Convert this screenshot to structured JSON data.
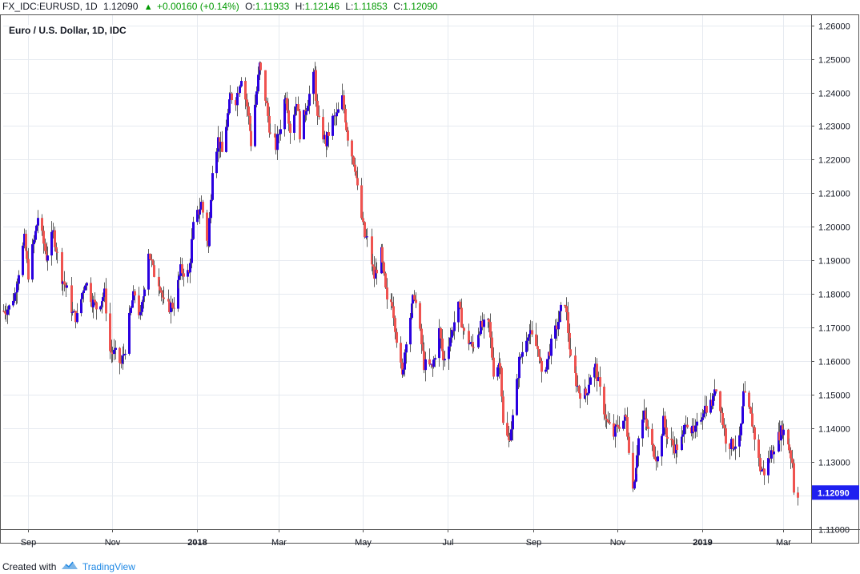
{
  "header": {
    "symbol": "FX_IDC:EURUSD, 1D",
    "last": "1.12090",
    "change": "+0.00160 (+0.14%)",
    "open_label": "O:",
    "open": "1.11933",
    "high_label": "H:",
    "high": "1.12146",
    "low_label": "L:",
    "low": "1.11853",
    "close_label": "C:",
    "close": "1.12090"
  },
  "footer": {
    "created_with": "Created with",
    "brand": "TradingView"
  },
  "colors": {
    "up": "#2a00e0",
    "down": "#ef5350",
    "wick": "#606060",
    "grid": "#e6eaf0",
    "price_tag": "#1e20f0"
  },
  "chart_data": {
    "type": "candlestick",
    "title": "Euro / U.S. Dollar, 1D, IDC",
    "ylim": [
      1.11,
      1.263
    ],
    "y_ticks": [
      1.11,
      1.12,
      1.13,
      1.14,
      1.15,
      1.16,
      1.17,
      1.18,
      1.19,
      1.2,
      1.21,
      1.22,
      1.23,
      1.24,
      1.25,
      1.26
    ],
    "y_tick_labels": [
      "1.11000",
      "1.12000",
      "1.13000",
      "1.14000",
      "1.15000",
      "1.16000",
      "1.17000",
      "1.18000",
      "1.19000",
      "1.20000",
      "1.21000",
      "1.22000",
      "1.23000",
      "1.24000",
      "1.25000",
      "1.26000"
    ],
    "x_labels": [
      {
        "label": "Sep",
        "date": "2017-09-01",
        "bold": false
      },
      {
        "label": "Nov",
        "date": "2017-11-01",
        "bold": false
      },
      {
        "label": "2018",
        "date": "2018-01-01",
        "bold": true
      },
      {
        "label": "Mar",
        "date": "2018-03-01",
        "bold": false
      },
      {
        "label": "May",
        "date": "2018-05-01",
        "bold": false
      },
      {
        "label": "Jul",
        "date": "2018-07-01",
        "bold": false
      },
      {
        "label": "Sep",
        "date": "2018-09-01",
        "bold": false
      },
      {
        "label": "Nov",
        "date": "2018-11-01",
        "bold": false
      },
      {
        "label": "2019",
        "date": "2019-01-01",
        "bold": true
      },
      {
        "label": "Mar",
        "date": "2019-03-01",
        "bold": false
      }
    ],
    "x_range": [
      "2017-08-14",
      "2019-03-21"
    ],
    "last_price_label": "1.12090",
    "last_price": 1.1209,
    "close_path": [
      [
        "2017-08-14",
        1.175
      ],
      [
        "2017-08-18",
        1.176
      ],
      [
        "2017-08-22",
        1.18
      ],
      [
        "2017-08-29",
        1.196
      ],
      [
        "2017-09-01",
        1.186
      ],
      [
        "2017-09-08",
        1.203
      ],
      [
        "2017-09-14",
        1.191
      ],
      [
        "2017-09-19",
        1.198
      ],
      [
        "2017-09-25",
        1.185
      ],
      [
        "2017-09-29",
        1.181
      ],
      [
        "2017-10-03",
        1.174
      ],
      [
        "2017-10-06",
        1.173
      ],
      [
        "2017-10-12",
        1.184
      ],
      [
        "2017-10-17",
        1.178
      ],
      [
        "2017-10-20",
        1.176
      ],
      [
        "2017-10-26",
        1.18
      ],
      [
        "2017-10-30",
        1.163
      ],
      [
        "2017-11-03",
        1.162
      ],
      [
        "2017-11-07",
        1.159
      ],
      [
        "2017-11-10",
        1.164
      ],
      [
        "2017-11-15",
        1.178
      ],
      [
        "2017-11-17",
        1.18
      ],
      [
        "2017-11-21",
        1.173
      ],
      [
        "2017-11-27",
        1.193
      ],
      [
        "2017-11-30",
        1.187
      ],
      [
        "2017-12-05",
        1.183
      ],
      [
        "2017-12-08",
        1.177
      ],
      [
        "2017-12-11",
        1.176
      ],
      [
        "2017-12-15",
        1.177
      ],
      [
        "2017-12-20",
        1.187
      ],
      [
        "2017-12-26",
        1.186
      ],
      [
        "2017-12-29",
        1.2
      ],
      [
        "2018-01-04",
        1.207
      ],
      [
        "2018-01-09",
        1.194
      ],
      [
        "2018-01-12",
        1.218
      ],
      [
        "2018-01-16",
        1.226
      ],
      [
        "2018-01-19",
        1.222
      ],
      [
        "2018-01-25",
        1.239
      ],
      [
        "2018-01-29",
        1.238
      ],
      [
        "2018-02-02",
        1.245
      ],
      [
        "2018-02-06",
        1.236
      ],
      [
        "2018-02-09",
        1.225
      ],
      [
        "2018-02-15",
        1.248
      ],
      [
        "2018-02-20",
        1.236
      ],
      [
        "2018-02-23",
        1.227
      ],
      [
        "2018-02-27",
        1.224
      ],
      [
        "2018-03-01",
        1.228
      ],
      [
        "2018-03-06",
        1.24
      ],
      [
        "2018-03-09",
        1.229
      ],
      [
        "2018-03-14",
        1.238
      ],
      [
        "2018-03-16",
        1.228
      ],
      [
        "2018-03-21",
        1.236
      ],
      [
        "2018-03-27",
        1.246
      ],
      [
        "2018-03-29",
        1.232
      ],
      [
        "2018-04-04",
        1.225
      ],
      [
        "2018-04-09",
        1.232
      ],
      [
        "2018-04-12",
        1.233
      ],
      [
        "2018-04-16",
        1.238
      ],
      [
        "2018-04-20",
        1.227
      ],
      [
        "2018-04-25",
        1.218
      ],
      [
        "2018-04-27",
        1.211
      ],
      [
        "2018-05-02",
        1.197
      ],
      [
        "2018-05-04",
        1.196
      ],
      [
        "2018-05-09",
        1.185
      ],
      [
        "2018-05-14",
        1.192
      ],
      [
        "2018-05-18",
        1.177
      ],
      [
        "2018-05-22",
        1.178
      ],
      [
        "2018-05-25",
        1.167
      ],
      [
        "2018-05-29",
        1.155
      ],
      [
        "2018-06-01",
        1.167
      ],
      [
        "2018-06-07",
        1.18
      ],
      [
        "2018-06-14",
        1.159
      ],
      [
        "2018-06-20",
        1.158
      ],
      [
        "2018-06-25",
        1.169
      ],
      [
        "2018-06-28",
        1.16
      ],
      [
        "2018-07-02",
        1.166
      ],
      [
        "2018-07-09",
        1.176
      ],
      [
        "2018-07-13",
        1.168
      ],
      [
        "2018-07-19",
        1.164
      ],
      [
        "2018-07-24",
        1.17
      ],
      [
        "2018-07-31",
        1.171
      ],
      [
        "2018-08-03",
        1.157
      ],
      [
        "2018-08-08",
        1.16
      ],
      [
        "2018-08-10",
        1.141
      ],
      [
        "2018-08-14",
        1.136
      ],
      [
        "2018-08-17",
        1.143
      ],
      [
        "2018-08-22",
        1.16
      ],
      [
        "2018-08-28",
        1.169
      ],
      [
        "2018-09-05",
        1.163
      ],
      [
        "2018-09-07",
        1.155
      ],
      [
        "2018-09-12",
        1.162
      ],
      [
        "2018-09-17",
        1.169
      ],
      [
        "2018-09-21",
        1.175
      ],
      [
        "2018-09-24",
        1.178
      ],
      [
        "2018-09-28",
        1.16
      ],
      [
        "2018-10-04",
        1.151
      ],
      [
        "2018-10-09",
        1.15
      ],
      [
        "2018-10-12",
        1.156
      ],
      [
        "2018-10-16",
        1.158
      ],
      [
        "2018-10-19",
        1.151
      ],
      [
        "2018-10-24",
        1.142
      ],
      [
        "2018-10-29",
        1.138
      ],
      [
        "2018-11-01",
        1.141
      ],
      [
        "2018-11-07",
        1.143
      ],
      [
        "2018-11-12",
        1.122
      ],
      [
        "2018-11-16",
        1.137
      ],
      [
        "2018-11-20",
        1.144
      ],
      [
        "2018-11-26",
        1.134
      ],
      [
        "2018-11-30",
        1.131
      ],
      [
        "2018-12-04",
        1.142
      ],
      [
        "2018-12-07",
        1.137
      ],
      [
        "2018-12-13",
        1.134
      ],
      [
        "2018-12-18",
        1.137
      ],
      [
        "2018-12-20",
        1.143
      ],
      [
        "2018-12-26",
        1.138
      ],
      [
        "2019-01-02",
        1.146
      ],
      [
        "2019-01-09",
        1.148
      ],
      [
        "2019-01-10",
        1.153
      ],
      [
        "2019-01-14",
        1.147
      ],
      [
        "2019-01-18",
        1.137
      ],
      [
        "2019-01-22",
        1.135
      ],
      [
        "2019-01-28",
        1.136
      ],
      [
        "2019-01-31",
        1.15
      ],
      [
        "2019-02-04",
        1.145
      ],
      [
        "2019-02-07",
        1.14
      ],
      [
        "2019-02-12",
        1.128
      ],
      [
        "2019-02-15",
        1.127
      ],
      [
        "2019-02-22",
        1.135
      ],
      [
        "2019-02-28",
        1.14
      ],
      [
        "2019-03-04",
        1.136
      ],
      [
        "2019-03-07",
        1.13
      ],
      [
        "2019-03-08",
        1.122
      ],
      [
        "2019-03-11",
        1.1209
      ]
    ]
  }
}
